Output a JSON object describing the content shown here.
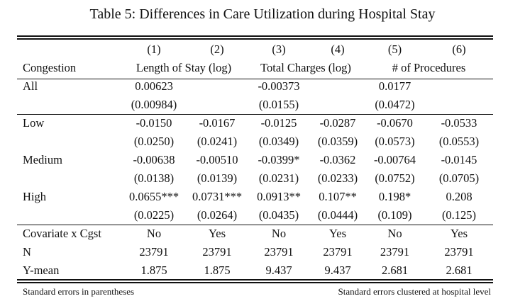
{
  "caption": "Table 5: Differences in Care Utilization during Hospital Stay",
  "columns": [
    "(1)",
    "(2)",
    "(3)",
    "(4)",
    "(5)",
    "(6)"
  ],
  "header": {
    "row_label": "Congestion",
    "groups": [
      "Length of Stay (log)",
      "Total Charges (log)",
      "# of Procedures"
    ]
  },
  "all": {
    "label": "All",
    "coef": [
      "0.00623",
      "",
      "-0.00373",
      "",
      "0.0177",
      ""
    ],
    "se": [
      "(0.00984)",
      "",
      "(0.0155)",
      "",
      "(0.0472)",
      ""
    ]
  },
  "rows": [
    {
      "label": "Low",
      "coef": [
        "-0.0150",
        "-0.0167",
        "-0.0125",
        "-0.0287",
        "-0.0670",
        "-0.0533"
      ],
      "se": [
        "(0.0250)",
        "(0.0241)",
        "(0.0349)",
        "(0.0359)",
        "(0.0573)",
        "(0.0553)"
      ]
    },
    {
      "label": "Medium",
      "coef": [
        "-0.00638",
        "-0.00510",
        "-0.0399*",
        "-0.0362",
        "-0.00764",
        "-0.0145"
      ],
      "se": [
        "(0.0138)",
        "(0.0139)",
        "(0.0231)",
        "(0.0233)",
        "(0.0752)",
        "(0.0705)"
      ]
    },
    {
      "label": "High",
      "coef": [
        "0.0655***",
        "0.0731***",
        "0.0913**",
        "0.107**",
        "0.198*",
        "0.208"
      ],
      "se": [
        "(0.0225)",
        "(0.0264)",
        "(0.0435)",
        "(0.0444)",
        "(0.109)",
        "(0.125)"
      ]
    }
  ],
  "stats": [
    {
      "label": "Covariate x Cgst",
      "values": [
        "No",
        "Yes",
        "No",
        "Yes",
        "No",
        "Yes"
      ]
    },
    {
      "label": "N",
      "values": [
        "23791",
        "23791",
        "23791",
        "23791",
        "23791",
        "23791"
      ]
    },
    {
      "label": "Y-mean",
      "values": [
        "1.875",
        "1.875",
        "9.437",
        "9.437",
        "2.681",
        "2.681"
      ]
    }
  ],
  "notes": {
    "left": "Standard errors in parentheses",
    "right": "Standard errors clustered at hospital level"
  }
}
